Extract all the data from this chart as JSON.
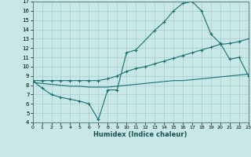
{
  "xlabel": "Humidex (Indice chaleur)",
  "xlim": [
    0,
    23
  ],
  "ylim": [
    4,
    17
  ],
  "yticks": [
    4,
    5,
    6,
    7,
    8,
    9,
    10,
    11,
    12,
    13,
    14,
    15,
    16,
    17
  ],
  "xticks": [
    0,
    1,
    2,
    3,
    4,
    5,
    6,
    7,
    8,
    9,
    10,
    11,
    12,
    13,
    14,
    15,
    16,
    17,
    18,
    19,
    20,
    21,
    22,
    23
  ],
  "background_color": "#c8e8e8",
  "grid_color": "#a8cece",
  "line_color": "#1a7070",
  "line1_x": [
    0,
    1,
    2,
    3,
    4,
    5,
    6,
    7,
    8,
    9,
    10,
    11,
    13,
    14,
    15,
    16,
    17,
    18,
    19,
    20,
    21,
    22,
    23
  ],
  "line1_y": [
    8.5,
    7.7,
    7.0,
    6.7,
    6.5,
    6.3,
    6.0,
    4.3,
    7.5,
    7.5,
    11.5,
    11.8,
    13.9,
    14.8,
    16.0,
    16.8,
    17.0,
    16.0,
    13.5,
    12.5,
    10.8,
    11.0,
    9.0
  ],
  "line2_x": [
    0,
    1,
    2,
    3,
    4,
    5,
    6,
    7,
    8,
    9,
    10,
    11,
    12,
    13,
    14,
    15,
    16,
    17,
    18,
    19,
    20,
    21,
    22,
    23
  ],
  "line2_y": [
    8.5,
    8.5,
    8.5,
    8.5,
    8.5,
    8.5,
    8.5,
    8.5,
    8.7,
    9.0,
    9.5,
    9.8,
    10.0,
    10.3,
    10.6,
    10.9,
    11.2,
    11.5,
    11.8,
    12.1,
    12.4,
    12.5,
    12.7,
    13.0
  ],
  "line3_x": [
    0,
    1,
    2,
    3,
    4,
    5,
    6,
    7,
    8,
    9,
    10,
    11,
    12,
    13,
    14,
    15,
    16,
    17,
    18,
    19,
    20,
    21,
    22,
    23
  ],
  "line3_y": [
    8.3,
    8.2,
    8.1,
    8.0,
    7.9,
    7.9,
    7.8,
    7.8,
    7.8,
    7.9,
    8.0,
    8.1,
    8.2,
    8.3,
    8.4,
    8.5,
    8.5,
    8.6,
    8.7,
    8.8,
    8.9,
    9.0,
    9.1,
    9.2
  ]
}
